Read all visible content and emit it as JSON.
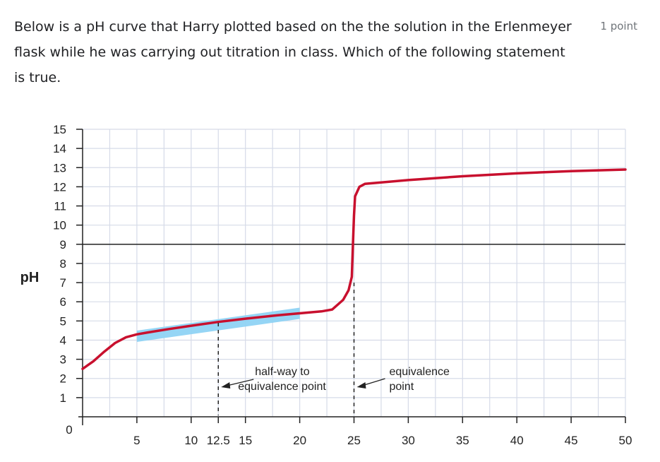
{
  "question": {
    "text": "Below is a pH curve that Harry plotted based on the the solution in the Erlenmeyer flask while he was carrying out titration in class. Which of the following statement is true.",
    "points": "1 point"
  },
  "chart_data": {
    "type": "line",
    "title": "",
    "xlabel": "",
    "ylabel": "pH",
    "xlim": [
      0,
      50
    ],
    "ylim": [
      0,
      15
    ],
    "x_ticks": [
      "0",
      "5",
      "10",
      "12.5",
      "15",
      "20",
      "25",
      "30",
      "35",
      "40",
      "45",
      "50"
    ],
    "x_tick_values": [
      0,
      5,
      10,
      12.5,
      15,
      20,
      25,
      30,
      35,
      40,
      45,
      50
    ],
    "y_ticks": [
      "1",
      "2",
      "3",
      "4",
      "5",
      "6",
      "7",
      "8",
      "9",
      "10",
      "11",
      "12",
      "13",
      "14",
      "15"
    ],
    "grid": true,
    "series": [
      {
        "color": "#c8102e",
        "x": [
          0,
          1,
          2,
          3,
          4,
          5,
          6,
          8,
          10,
          12.5,
          15,
          18,
          20,
          22,
          23,
          24,
          24.5,
          24.8,
          24.9,
          25,
          25.1,
          25.5,
          26,
          30,
          35,
          40,
          45,
          50
        ],
        "y": [
          2.5,
          2.9,
          3.4,
          3.85,
          4.15,
          4.3,
          4.4,
          4.58,
          4.75,
          4.95,
          5.12,
          5.3,
          5.4,
          5.5,
          5.6,
          6.1,
          6.6,
          7.3,
          9.0,
          10.5,
          11.5,
          12.0,
          12.15,
          12.35,
          12.55,
          12.7,
          12.82,
          12.9
        ]
      }
    ],
    "highlight": {
      "x_start": 5,
      "x_end": 20,
      "y_start": 4.2,
      "y_end": 5.4,
      "color": "#8fd3f4"
    },
    "reference_line": {
      "y": 9,
      "color": "#333333"
    },
    "dashed_markers": [
      {
        "x": 12.5,
        "y_top": 4.9
      },
      {
        "x": 25,
        "y_top": 7.0
      }
    ],
    "annotations": [
      {
        "lines": [
          "half-way to",
          "equivalence point"
        ],
        "x": 12.5
      },
      {
        "lines": [
          "equivalence",
          "point"
        ],
        "x": 25
      }
    ]
  }
}
